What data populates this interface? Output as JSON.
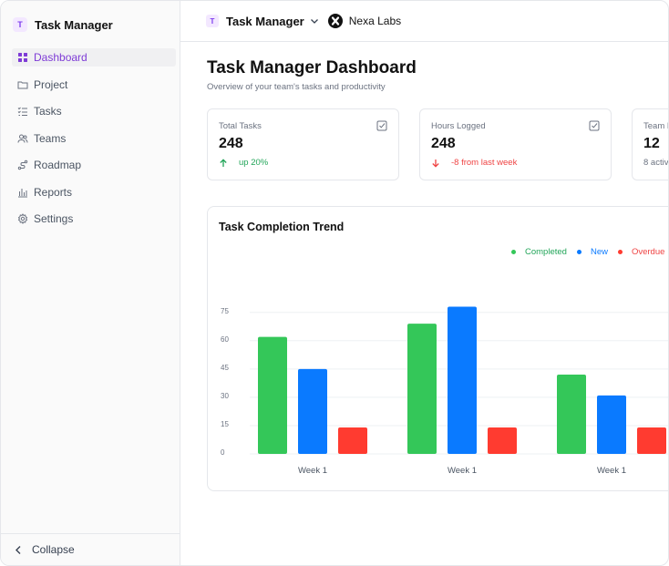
{
  "sidebar": {
    "brand_initial": "T",
    "brand_title": "Task Manager",
    "items": [
      {
        "label": "Dashboard",
        "icon": "grid-icon",
        "active": true
      },
      {
        "label": "Project",
        "icon": "folder-icon",
        "active": false
      },
      {
        "label": "Tasks",
        "icon": "list-check-icon",
        "active": false
      },
      {
        "label": "Teams",
        "icon": "users-icon",
        "active": false
      },
      {
        "label": "Roadmap",
        "icon": "route-icon",
        "active": false
      },
      {
        "label": "Reports",
        "icon": "bar-chart-icon",
        "active": false
      },
      {
        "label": "Settings",
        "icon": "gear-icon",
        "active": false
      }
    ],
    "collapse_label": "Collapse"
  },
  "header": {
    "workspace_initial": "T",
    "workspace_title": "Task Manager",
    "org_name": "Nexa Labs"
  },
  "page": {
    "title": "Task Manager Dashboard",
    "subtitle": "Overview of your team's tasks and productivity"
  },
  "stats": [
    {
      "label": "Total Tasks",
      "value": "248",
      "change": "up 20%",
      "trend": "up"
    },
    {
      "label": "Hours Logged",
      "value": "248",
      "change": "-8 from last week",
      "trend": "down"
    },
    {
      "label": "Team M",
      "value": "12",
      "change": "8 activ",
      "trend": "neutral"
    }
  ],
  "colors": {
    "accent": "#7e3bd6",
    "completed": "#34c759",
    "new": "#0a7aff",
    "overdue": "#ff3b30"
  },
  "chart_data": {
    "type": "bar",
    "title": "Task Completion Trend",
    "categories": [
      "Week 1",
      "Week 1",
      "Week 1"
    ],
    "series": [
      {
        "name": "Completed",
        "values": [
          62,
          69,
          42
        ]
      },
      {
        "name": "New",
        "values": [
          45,
          78,
          31
        ]
      },
      {
        "name": "Overdue",
        "values": [
          14,
          14,
          14
        ]
      }
    ],
    "y_ticks": [
      "0",
      "15",
      "30",
      "45",
      "60",
      "75"
    ],
    "ylim": [
      0,
      78
    ],
    "grid": true,
    "legend_position": "top-right"
  }
}
